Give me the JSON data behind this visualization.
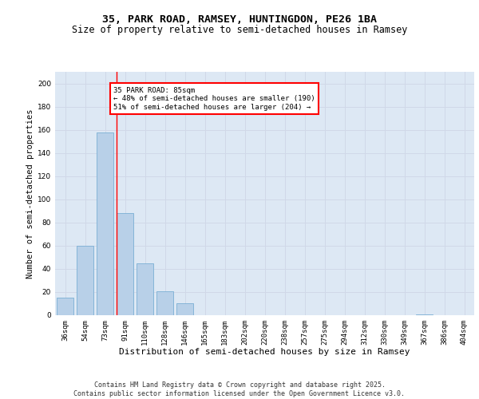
{
  "title1": "35, PARK ROAD, RAMSEY, HUNTINGDON, PE26 1BA",
  "title2": "Size of property relative to semi-detached houses in Ramsey",
  "xlabel": "Distribution of semi-detached houses by size in Ramsey",
  "ylabel": "Number of semi-detached properties",
  "categories": [
    "36sqm",
    "54sqm",
    "73sqm",
    "91sqm",
    "110sqm",
    "128sqm",
    "146sqm",
    "165sqm",
    "183sqm",
    "202sqm",
    "220sqm",
    "238sqm",
    "257sqm",
    "275sqm",
    "294sqm",
    "312sqm",
    "330sqm",
    "349sqm",
    "367sqm",
    "386sqm",
    "404sqm"
  ],
  "values": [
    15,
    60,
    158,
    88,
    45,
    21,
    10,
    0,
    0,
    0,
    0,
    0,
    0,
    0,
    0,
    0,
    0,
    0,
    1,
    0,
    0
  ],
  "bar_color": "#b8d0e8",
  "bar_edge_color": "#7bafd4",
  "subject_line_bin": 3,
  "subject_label": "35 PARK ROAD: 85sqm",
  "annot_line1": "← 48% of semi-detached houses are smaller (190)",
  "annot_line2": "51% of semi-detached houses are larger (204) →",
  "ylim": [
    0,
    210
  ],
  "yticks": [
    0,
    20,
    40,
    60,
    80,
    100,
    120,
    140,
    160,
    180,
    200
  ],
  "grid_color": "#d0d8e8",
  "background_color": "#dde8f4",
  "footer": "Contains HM Land Registry data © Crown copyright and database right 2025.\nContains public sector information licensed under the Open Government Licence v3.0.",
  "title1_fontsize": 9.5,
  "title2_fontsize": 8.5,
  "xlabel_fontsize": 8,
  "ylabel_fontsize": 7.5,
  "tick_fontsize": 6.5,
  "annot_fontsize": 6.5,
  "footer_fontsize": 6
}
